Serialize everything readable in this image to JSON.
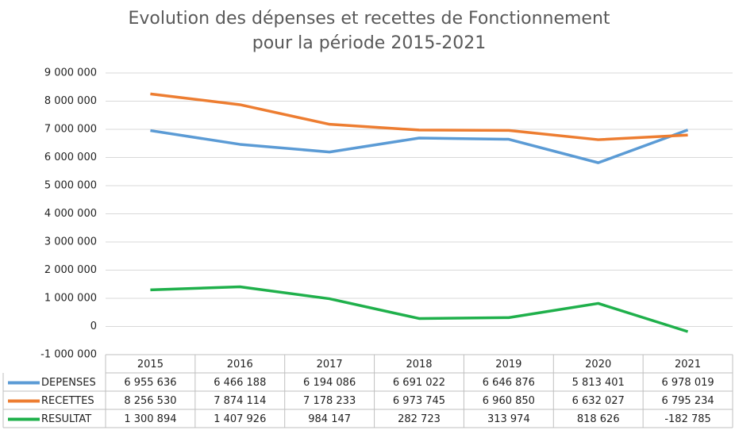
{
  "chart_data": {
    "type": "line",
    "title": [
      "Evolution des dépenses et recettes de Fonctionnement",
      "pour la période 2015-2021"
    ],
    "categories": [
      "2015",
      "2016",
      "2017",
      "2018",
      "2019",
      "2020",
      "2021"
    ],
    "series": [
      {
        "name": "DEPENSES",
        "color": "#5b9bd5",
        "values": [
          6955636,
          6466188,
          6194086,
          6691022,
          6646876,
          5813401,
          6978019
        ],
        "value_labels": [
          "6 955 636",
          "6 466 188",
          "6 194 086",
          "6 691 022",
          "6 646 876",
          "5 813 401",
          "6 978 019"
        ]
      },
      {
        "name": "RECETTES",
        "color": "#ed7d31",
        "values": [
          8256530,
          7874114,
          7178233,
          6973745,
          6960850,
          6632027,
          6795234
        ],
        "value_labels": [
          "8 256 530",
          "7 874 114",
          "7 178 233",
          "6 973 745",
          "6 960 850",
          "6 632 027",
          "6 795 234"
        ]
      },
      {
        "name": "RESULTAT",
        "color": "#1fb04b",
        "values": [
          1300894,
          1407926,
          984147,
          282723,
          313974,
          818626,
          -182785
        ],
        "value_labels": [
          "1 300 894",
          "1 407 926",
          "984 147",
          "282 723",
          "313 974",
          "818 626",
          "-182 785"
        ]
      }
    ],
    "ylim": [
      -1000000,
      9000000
    ],
    "yticks": [
      {
        "value": -1000000,
        "label": "-1 000 000"
      },
      0,
      {
        "value": 1000000,
        "label": "1 000 000"
      },
      {
        "value": 2000000,
        "label": "2 000 000"
      },
      {
        "value": 3000000,
        "label": "3 000 000"
      },
      {
        "value": 4000000,
        "label": "4 000 000"
      },
      {
        "value": 5000000,
        "label": "5 000 000"
      },
      {
        "value": 6000000,
        "label": "6 000 000"
      },
      {
        "value": 7000000,
        "label": "7 000 000"
      },
      {
        "value": 8000000,
        "label": "8 000 000"
      },
      {
        "value": 9000000,
        "label": "9 000 000"
      }
    ],
    "grid": true
  }
}
